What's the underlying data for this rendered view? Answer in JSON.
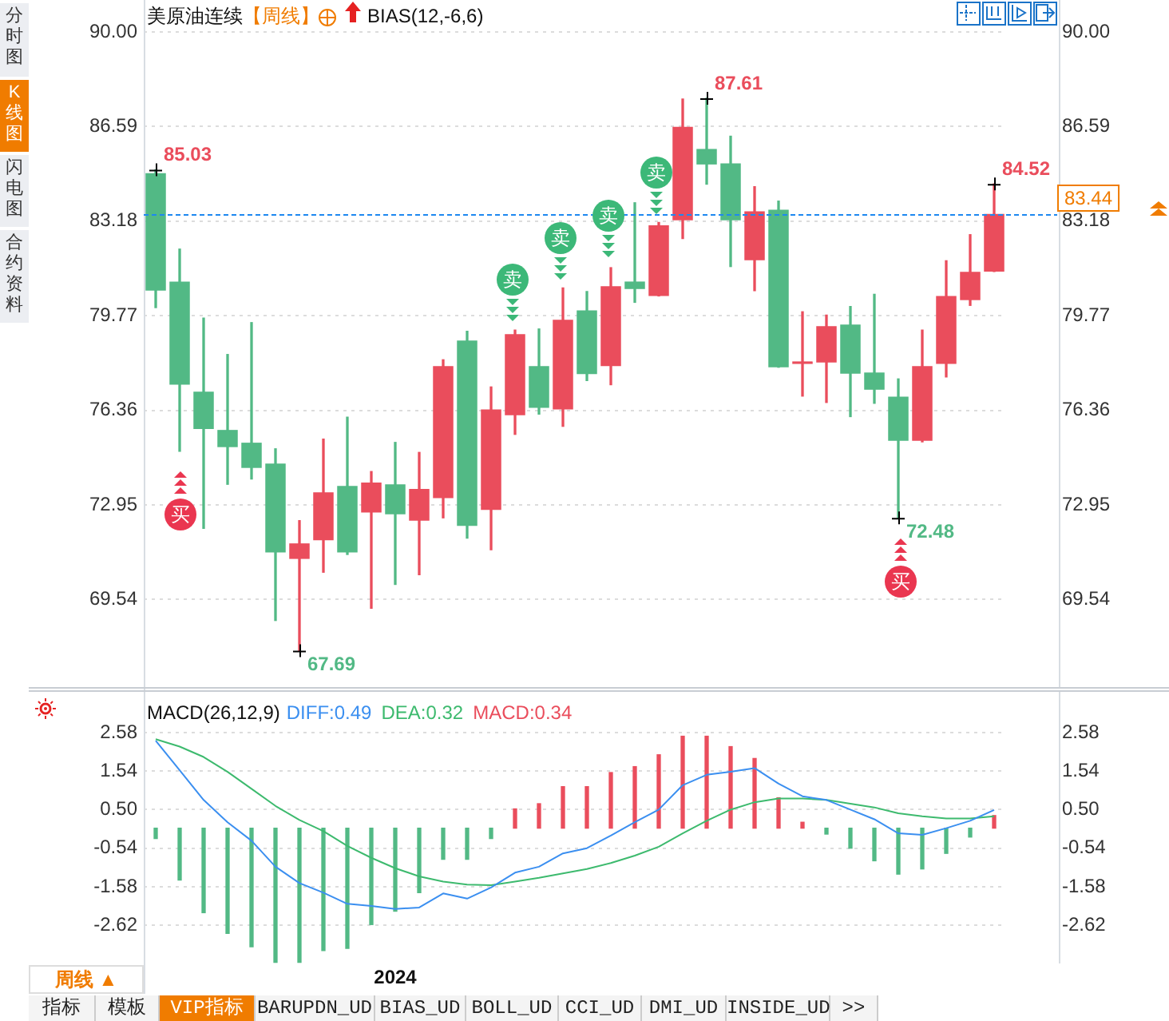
{
  "chart_data": [
    {
      "type": "candlestick",
      "title": "美原油连续",
      "subtitle": "【周线】",
      "categories": [
        null,
        null,
        null,
        null,
        null,
        null,
        null,
        null,
        null,
        null,
        null,
        null,
        null,
        null,
        null,
        null,
        null,
        null,
        null,
        null,
        null,
        null,
        null,
        null,
        null,
        null,
        null,
        null,
        null,
        null,
        null,
        null,
        null,
        null,
        null,
        null
      ],
      "ohlc": [
        [
          84.91,
          85.03,
          80.06,
          80.67
        ],
        [
          81.0,
          82.17,
          74.88,
          77.28
        ],
        [
          77.03,
          79.68,
          72.1,
          75.68
        ],
        [
          75.65,
          78.37,
          73.69,
          75.03
        ],
        [
          75.19,
          79.52,
          73.88,
          74.28
        ],
        [
          74.44,
          74.97,
          68.78,
          71.23
        ],
        [
          71.0,
          72.38,
          67.69,
          71.56
        ],
        [
          71.67,
          75.32,
          70.52,
          73.4
        ],
        [
          73.63,
          76.11,
          71.16,
          71.23
        ],
        [
          72.67,
          74.15,
          69.22,
          73.75
        ],
        [
          73.69,
          75.2,
          70.08,
          72.61
        ],
        [
          72.38,
          74.84,
          70.43,
          73.52
        ],
        [
          73.19,
          78.18,
          72.48,
          77.95
        ],
        [
          78.87,
          79.21,
          71.75,
          72.19
        ],
        [
          72.77,
          77.2,
          71.33,
          76.39
        ],
        [
          76.18,
          79.25,
          75.49,
          79.1
        ],
        [
          77.95,
          79.29,
          76.22,
          76.45
        ],
        [
          76.39,
          80.77,
          75.78,
          79.62
        ],
        [
          79.96,
          80.64,
          77.43,
          77.66
        ],
        [
          77.95,
          81.5,
          77.28,
          80.83
        ],
        [
          81.0,
          83.84,
          80.25,
          80.73
        ],
        [
          80.48,
          83.13,
          80.48,
          83.03
        ],
        [
          83.21,
          87.58,
          82.55,
          86.58
        ],
        [
          85.78,
          87.61,
          84.51,
          85.22
        ],
        [
          85.26,
          86.24,
          81.54,
          83.21
        ],
        [
          81.77,
          84.42,
          80.67,
          83.53
        ],
        [
          83.59,
          83.9,
          77.91,
          77.91
        ],
        [
          78.03,
          79.91,
          76.87,
          78.12
        ],
        [
          78.08,
          79.79,
          76.64,
          79.39
        ],
        [
          79.45,
          80.1,
          76.13,
          77.68
        ],
        [
          77.72,
          80.54,
          76.61,
          77.1
        ],
        [
          76.85,
          77.49,
          72.48,
          75.26
        ],
        [
          75.26,
          79.25,
          75.22,
          77.95
        ],
        [
          78.03,
          81.75,
          77.56,
          80.48
        ],
        [
          80.33,
          82.69,
          80.14,
          81.35
        ],
        [
          81.36,
          84.52,
          81.36,
          83.44
        ]
      ],
      "colors": [
        "#52b985",
        "#52b985",
        "#52b985",
        "#52b985",
        "#52b985",
        "#52b985",
        "#ea4d5c",
        "#ea4d5c",
        "#52b985",
        "#ea4d5c",
        "#52b985",
        "#ea4d5c",
        "#ea4d5c",
        "#52b985",
        "#ea4d5c",
        "#ea4d5c",
        "#52b985",
        "#ea4d5c",
        "#52b985",
        "#ea4d5c",
        "#52b985",
        "#ea4d5c",
        "#ea4d5c",
        "#52b985",
        "#52b985",
        "#ea4d5c",
        "#52b985",
        "#ea4d5c",
        "#ea4d5c",
        "#52b985",
        "#52b985",
        "#52b985",
        "#ea4d5c",
        "#ea4d5c",
        "#ea4d5c",
        "#ea4d5c"
      ],
      "value_labels": [
        "85.03",
        null,
        null,
        null,
        null,
        null,
        "67.69",
        null,
        null,
        null,
        null,
        null,
        null,
        null,
        null,
        null,
        null,
        null,
        null,
        null,
        null,
        null,
        null,
        "87.61",
        null,
        null,
        null,
        null,
        null,
        null,
        null,
        "72.48",
        null,
        null,
        null,
        "84.52"
      ],
      "ylim": [
        66.38,
        91.15
      ],
      "yticks": [
        {
          "value": 90,
          "label": "90.00"
        },
        86.59,
        83.18,
        79.77,
        76.36,
        72.95,
        69.54
      ],
      "y2lim": [
        66.38,
        91.15
      ],
      "y2ticks": [
        {
          "value": 90,
          "label": "90.00"
        },
        86.59,
        83.18,
        79.77,
        76.36,
        72.95,
        69.54
      ],
      "grid": "y",
      "ref_lines": [
        {
          "axis": "y2",
          "value": 83.44,
          "label": "83.44",
          "color": "#1e88f0",
          "line_style": "dashed"
        }
      ],
      "annotations": [
        "BIAS(12,-6,6)",
        "卖",
        "卖",
        "卖",
        "卖",
        "买",
        "买",
        "分时图",
        "K线图",
        "闪电图",
        "合约资料"
      ]
    },
    {
      "type": "bar",
      "title": "MACD(26,12,9)",
      "categories": [
        null,
        null,
        null,
        null,
        null,
        null,
        null,
        null,
        null,
        null,
        "2024",
        null,
        null,
        null,
        null,
        null,
        null,
        null,
        null,
        null,
        null,
        null,
        null,
        null,
        null,
        null,
        null,
        null,
        null,
        null,
        null,
        null,
        null,
        null,
        null,
        null
      ],
      "series": [
        {
          "name": "DIFF:0.49",
          "type": "line",
          "color": "#3b8ff0",
          "values": [
            2.36,
            1.56,
            0.76,
            0.16,
            -0.34,
            -1.04,
            -1.48,
            -1.74,
            -2.04,
            -2.1,
            -2.18,
            -2.14,
            -1.76,
            -1.9,
            -1.6,
            -1.2,
            -1.04,
            -0.68,
            -0.54,
            -0.2,
            0.16,
            0.5,
            1.16,
            1.44,
            1.52,
            1.62,
            1.2,
            0.86,
            0.76,
            0.5,
            0.24,
            -0.14,
            -0.18,
            0.0,
            0.2,
            0.49
          ]
        },
        {
          "name": "DEA:0.32",
          "type": "line",
          "color": "#3dba6e",
          "values": [
            2.4,
            2.2,
            1.92,
            1.52,
            1.06,
            0.6,
            0.22,
            -0.08,
            -0.48,
            -0.8,
            -1.08,
            -1.3,
            -1.44,
            -1.52,
            -1.54,
            -1.44,
            -1.34,
            -1.22,
            -1.1,
            -0.94,
            -0.74,
            -0.5,
            -0.14,
            0.2,
            0.5,
            0.7,
            0.8,
            0.8,
            0.76,
            0.66,
            0.56,
            0.4,
            0.32,
            0.26,
            0.26,
            0.32
          ]
        },
        {
          "name": "MACD:0.34",
          "type": "bar",
          "color": "#ea4d5c",
          "colors": [
            "#52b985",
            "#52b985",
            "#52b985",
            "#52b985",
            "#52b985",
            "#52b985",
            "#52b985",
            "#52b985",
            "#52b985",
            "#52b985",
            "#52b985",
            "#52b985",
            "#52b985",
            "#52b985",
            "#52b985",
            "#ea4d5c",
            "#ea4d5c",
            "#ea4d5c",
            "#ea4d5c",
            "#ea4d5c",
            "#ea4d5c",
            "#ea4d5c",
            "#ea4d5c",
            "#ea4d5c",
            "#ea4d5c",
            "#ea4d5c",
            "#ea4d5c",
            "#ea4d5c",
            "#52b985",
            "#52b985",
            "#52b985",
            "#52b985",
            "#52b985",
            "#52b985",
            "#52b985",
            "#ea4d5c"
          ],
          "values": [
            -0.28,
            -1.4,
            -2.28,
            -2.84,
            -3.2,
            -3.62,
            -3.62,
            -3.3,
            -3.24,
            -2.6,
            -2.24,
            -1.74,
            -0.84,
            -0.84,
            -0.28,
            0.52,
            0.66,
            1.12,
            1.12,
            1.5,
            1.66,
            1.98,
            2.48,
            2.48,
            2.2,
            1.88,
            0.82,
            0.16,
            -0.16,
            -0.54,
            -0.88,
            -1.24,
            -1.1,
            -0.68,
            -0.24,
            0.34
          ]
        }
      ],
      "ylim": [
        -3.65,
        3.72
      ],
      "yticks": [
        2.58,
        1.54,
        {
          "value": 0.5,
          "label": "0.50"
        },
        -0.54,
        -1.58,
        -2.62
      ],
      "y2lim": [
        -3.65,
        3.72
      ],
      "y2ticks": [
        2.58,
        1.54,
        {
          "value": 0.5,
          "label": "0.50"
        },
        -0.54,
        -1.58,
        -2.62
      ],
      "grid": "y",
      "legend": "top left",
      "marker": "none",
      "annotations": [
        "周线 ▲",
        "指标",
        "模板",
        "VIP指标",
        "BARUPDN_UD",
        "BIAS_UD",
        "BOLL_UD",
        "CCI_UD",
        "DMI_UD",
        "INSIDE_UD",
        ">>"
      ]
    }
  ]
}
